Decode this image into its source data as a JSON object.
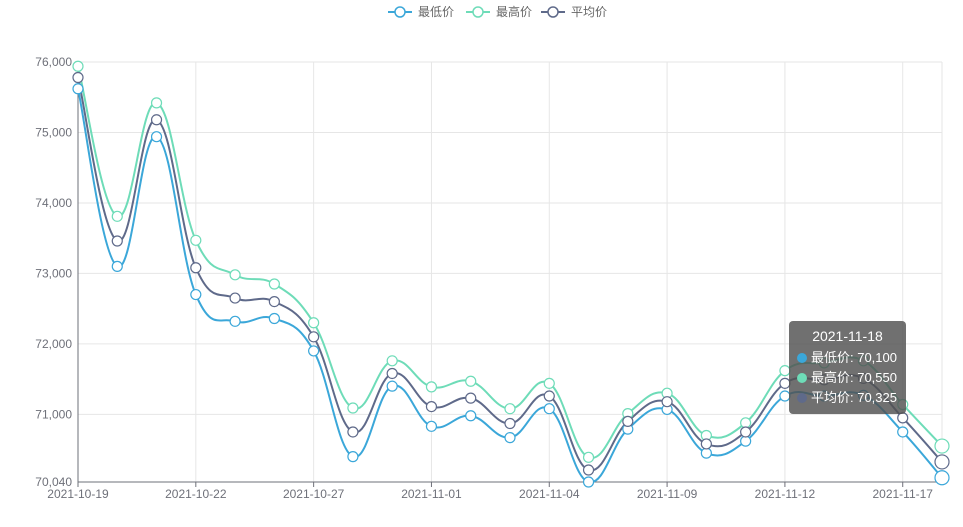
{
  "chart_data": {
    "type": "line",
    "smooth": true,
    "grid": true,
    "legend_position": "top-center",
    "x_tick_labels": [
      "2021-10-19",
      "2021-10-22",
      "2021-10-27",
      "2021-11-01",
      "2021-11-04",
      "2021-11-09",
      "2021-11-12",
      "2021-11-17"
    ],
    "y_tick_labels": [
      "70,040",
      "71,000",
      "72,000",
      "73,000",
      "74,000",
      "75,000",
      "76,000"
    ],
    "ylim": [
      70040,
      76000
    ],
    "x": [
      "2021-10-19",
      "2021-10-20",
      "2021-10-21",
      "2021-10-22",
      "2021-10-25",
      "2021-10-26",
      "2021-10-27",
      "2021-10-28",
      "2021-10-29",
      "2021-11-01",
      "2021-11-02",
      "2021-11-03",
      "2021-11-04",
      "2021-11-05",
      "2021-11-08",
      "2021-11-09",
      "2021-11-10",
      "2021-11-11",
      "2021-11-12",
      "2021-11-15",
      "2021-11-16",
      "2021-11-17",
      "2021-11-18"
    ],
    "series": [
      {
        "name": "最低价",
        "color": "#3ba7d9",
        "values": [
          75620,
          73100,
          74940,
          72700,
          72320,
          72360,
          71900,
          70400,
          71400,
          70830,
          70980,
          70670,
          71080,
          70040,
          70790,
          71070,
          70450,
          70620,
          71260,
          71260,
          71270,
          70750,
          70100
        ]
      },
      {
        "name": "最高价",
        "color": "#6edcb8",
        "values": [
          75940,
          73810,
          75420,
          73470,
          72980,
          72850,
          72300,
          71090,
          71760,
          71390,
          71470,
          71080,
          71440,
          70390,
          71010,
          71300,
          70700,
          70880,
          71620,
          71730,
          71760,
          71140,
          70550
        ]
      },
      {
        "name": "平均价",
        "color": "#5f6a8a",
        "values": [
          75780,
          73460,
          75180,
          73080,
          72650,
          72600,
          72100,
          70750,
          71580,
          71110,
          71230,
          70870,
          71260,
          70210,
          70900,
          71180,
          70580,
          70750,
          71440,
          71490,
          71510,
          70950,
          70325
        ]
      }
    ]
  },
  "tooltip": {
    "title": "2021-11-18",
    "rows": [
      {
        "label": "最低价: 70,100",
        "color": "#3ba7d9"
      },
      {
        "label": "最高价: 70,550",
        "color": "#6edcb8"
      },
      {
        "label": "平均价: 70,325",
        "color": "#5f6a8a"
      }
    ]
  }
}
